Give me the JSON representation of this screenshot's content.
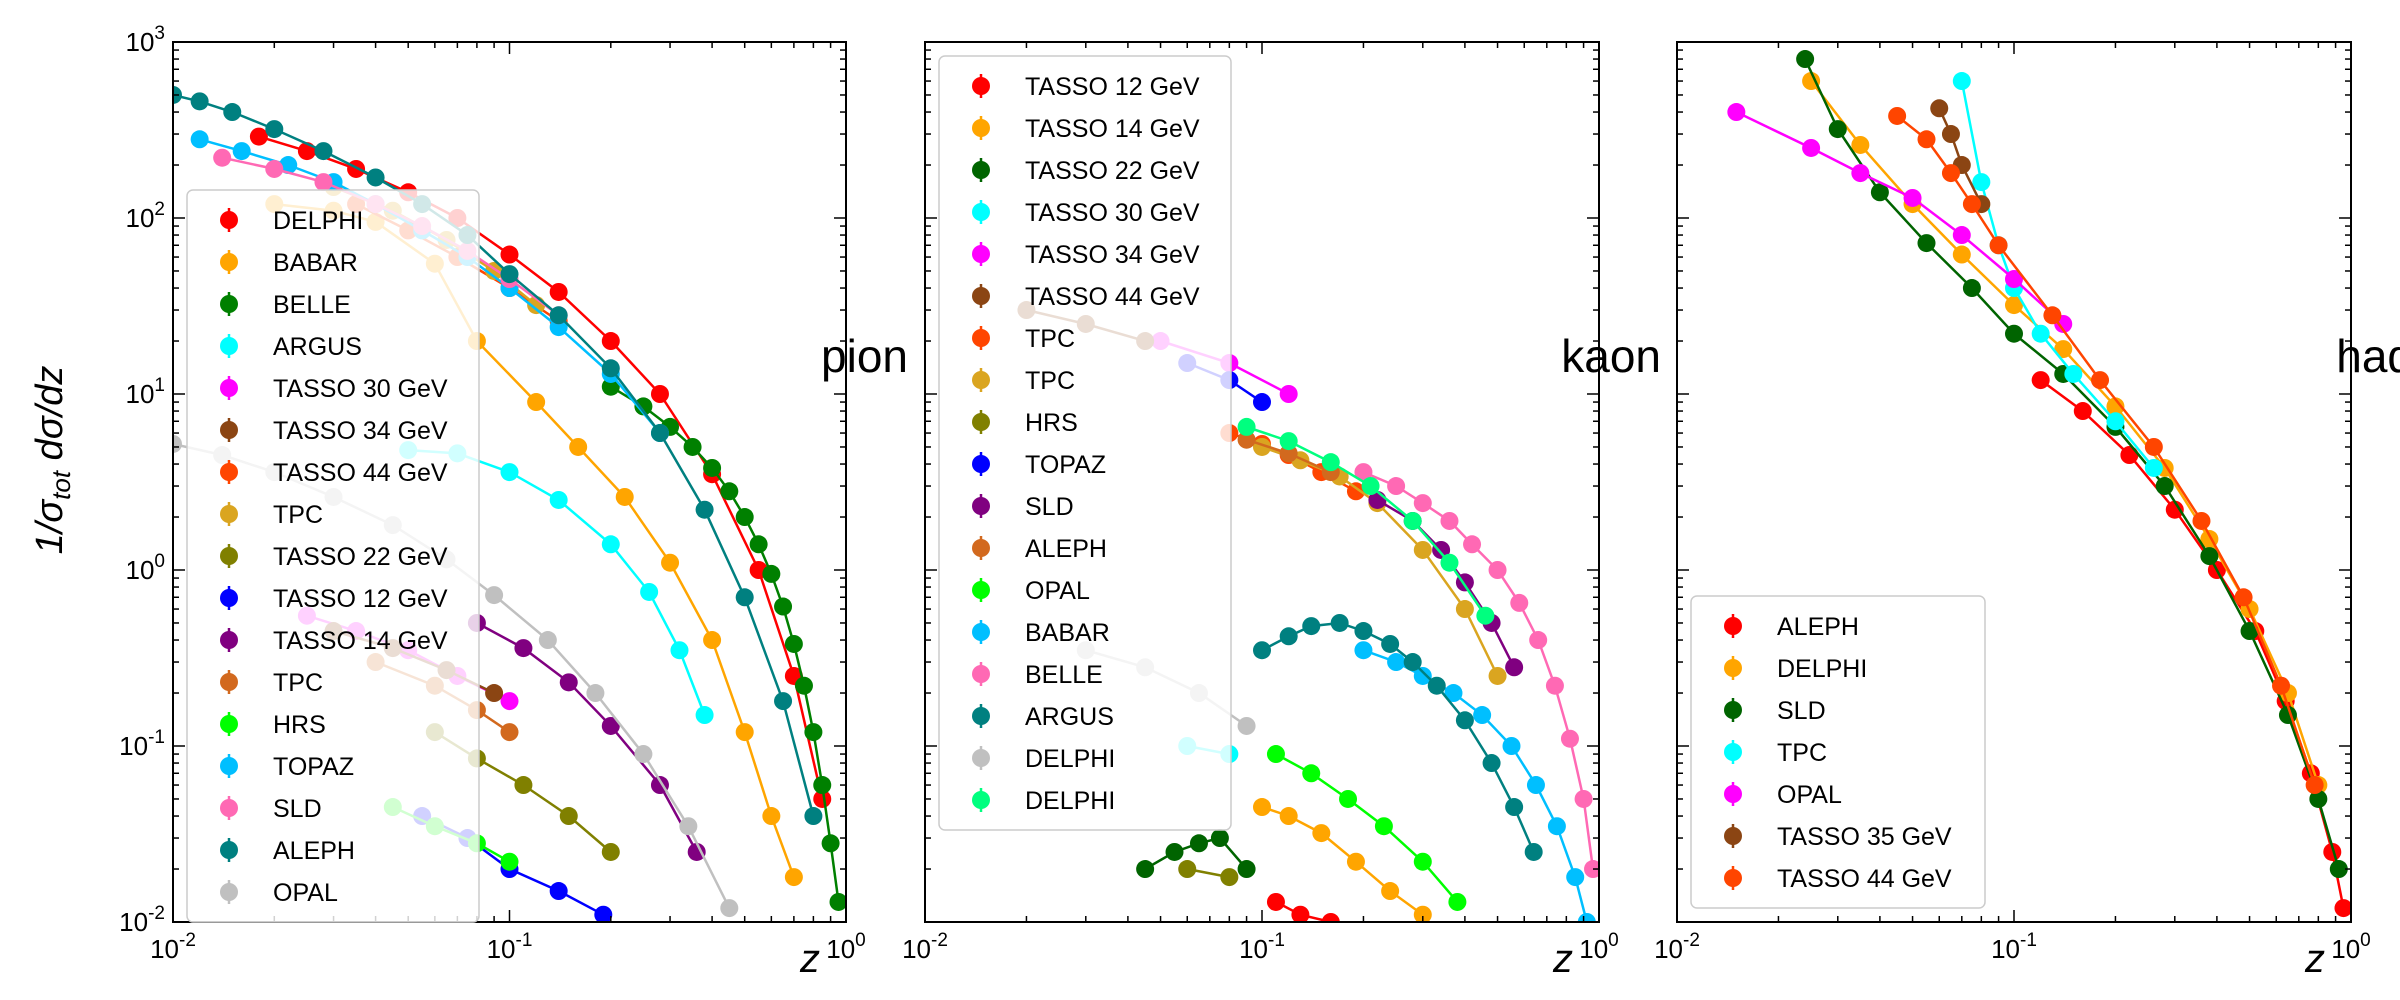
{
  "chart_data": [
    {
      "type": "scatter",
      "title": "pion",
      "xlabel": "z",
      "ylabel": "1/σ_tot dσ/dz",
      "xscale": "log",
      "yscale": "log",
      "xlim": [
        0.01,
        1
      ],
      "ylim": [
        0.01,
        1000
      ],
      "x_tick_labels": [
        "10^{-2}",
        "10^{-1}",
        "10^{0}"
      ],
      "y_tick_labels": [
        "10^{-2}",
        "10^{-1}",
        "10^{0}",
        "10^{1}",
        "10^{2}",
        "10^{3}"
      ],
      "legend_position": "left",
      "series": [
        {
          "name": "DELPHI",
          "color": "#ff0000",
          "x": [
            0.018,
            0.025,
            0.035,
            0.05,
            0.07,
            0.1,
            0.14,
            0.2,
            0.28,
            0.4,
            0.55,
            0.7,
            0.85
          ],
          "y": [
            290,
            240,
            190,
            140,
            100,
            62,
            38,
            20,
            10,
            3.5,
            1.0,
            0.25,
            0.05
          ]
        },
        {
          "name": "BABAR",
          "color": "#ffa500",
          "x": [
            0.02,
            0.03,
            0.04,
            0.06,
            0.08,
            0.12,
            0.16,
            0.22,
            0.3,
            0.4,
            0.5,
            0.6,
            0.7
          ],
          "y": [
            120,
            110,
            95,
            55,
            20,
            9,
            5,
            2.6,
            1.1,
            0.4,
            0.12,
            0.04,
            0.018
          ]
        },
        {
          "name": "BELLE",
          "color": "#008000",
          "x": [
            0.2,
            0.25,
            0.3,
            0.35,
            0.4,
            0.45,
            0.5,
            0.55,
            0.6,
            0.65,
            0.7,
            0.75,
            0.8,
            0.85,
            0.9,
            0.95
          ],
          "y": [
            11,
            8.5,
            6.5,
            5.0,
            3.8,
            2.8,
            2.0,
            1.4,
            0.95,
            0.62,
            0.38,
            0.22,
            0.12,
            0.06,
            0.028,
            0.013
          ]
        },
        {
          "name": "ARGUS",
          "color": "#00ffff",
          "x": [
            0.05,
            0.07,
            0.1,
            0.14,
            0.2,
            0.26,
            0.32,
            0.38
          ],
          "y": [
            4.8,
            4.6,
            3.6,
            2.5,
            1.4,
            0.75,
            0.35,
            0.15
          ]
        },
        {
          "name": "TASSO 30 GeV",
          "color": "#ff00ff",
          "x": [
            0.025,
            0.035,
            0.05,
            0.07,
            0.1
          ],
          "y": [
            0.55,
            0.45,
            0.35,
            0.25,
            0.18
          ]
        },
        {
          "name": "TASSO 34 GeV",
          "color": "#8b4513",
          "x": [
            0.03,
            0.045,
            0.065,
            0.09
          ],
          "y": [
            0.45,
            0.36,
            0.27,
            0.2
          ]
        },
        {
          "name": "TASSO 44 GeV",
          "color": "#ff4500",
          "x": [
            0.035,
            0.05,
            0.07,
            0.1,
            0.14
          ],
          "y": [
            120,
            85,
            60,
            40,
            26
          ]
        },
        {
          "name": "TPC",
          "color": "#daa520",
          "x": [
            0.03,
            0.045,
            0.065,
            0.09,
            0.12
          ],
          "y": [
            150,
            110,
            75,
            50,
            32
          ]
        },
        {
          "name": "TASSO 22 GeV",
          "color": "#808000",
          "x": [
            0.06,
            0.08,
            0.11,
            0.15,
            0.2
          ],
          "y": [
            0.12,
            0.085,
            0.06,
            0.04,
            0.025
          ]
        },
        {
          "name": "TASSO 12 GeV",
          "color": "#0000ff",
          "x": [
            0.055,
            0.075,
            0.1,
            0.14,
            0.19
          ],
          "y": [
            0.04,
            0.03,
            0.02,
            0.015,
            0.011
          ]
        },
        {
          "name": "TASSO 14 GeV",
          "color": "#800080",
          "x": [
            0.08,
            0.11,
            0.15,
            0.2,
            0.28,
            0.36
          ],
          "y": [
            0.5,
            0.36,
            0.23,
            0.13,
            0.06,
            0.025
          ]
        },
        {
          "name": "TPC",
          "color": "#d2691e",
          "x": [
            0.04,
            0.06,
            0.08,
            0.1
          ],
          "y": [
            0.3,
            0.22,
            0.16,
            0.12
          ]
        },
        {
          "name": "HRS",
          "color": "#00ff00",
          "x": [
            0.045,
            0.06,
            0.08,
            0.1
          ],
          "y": [
            0.045,
            0.035,
            0.028,
            0.022
          ]
        },
        {
          "name": "TOPAZ",
          "color": "#00bfff",
          "x": [
            0.012,
            0.016,
            0.022,
            0.03,
            0.04,
            0.055,
            0.075,
            0.1,
            0.14,
            0.2,
            0.28
          ],
          "y": [
            280,
            240,
            200,
            160,
            120,
            85,
            60,
            40,
            24,
            13,
            6
          ]
        },
        {
          "name": "SLD",
          "color": "#ff69b4",
          "x": [
            0.014,
            0.02,
            0.028,
            0.04,
            0.055,
            0.075,
            0.1,
            0.14
          ],
          "y": [
            220,
            190,
            160,
            120,
            90,
            65,
            45,
            28
          ]
        },
        {
          "name": "ALEPH",
          "color": "#008080",
          "x": [
            0.01,
            0.012,
            0.015,
            0.02,
            0.028,
            0.04,
            0.055,
            0.075,
            0.1,
            0.14,
            0.2,
            0.28,
            0.38,
            0.5,
            0.65,
            0.8
          ],
          "y": [
            500,
            460,
            400,
            320,
            240,
            170,
            120,
            80,
            48,
            28,
            14,
            6,
            2.2,
            0.7,
            0.18,
            0.04
          ]
        },
        {
          "name": "OPAL",
          "color": "#c0c0c0",
          "x": [
            0.01,
            0.014,
            0.02,
            0.03,
            0.045,
            0.065,
            0.09,
            0.13,
            0.18,
            0.25,
            0.34,
            0.45
          ],
          "y": [
            5.2,
            4.5,
            3.6,
            2.6,
            1.8,
            1.15,
            0.72,
            0.4,
            0.2,
            0.09,
            0.035,
            0.012
          ]
        }
      ]
    },
    {
      "type": "scatter",
      "title": "kaon",
      "xlabel": "z",
      "xscale": "log",
      "yscale": "log",
      "xlim": [
        0.01,
        1
      ],
      "ylim": [
        0.01,
        1000
      ],
      "x_tick_labels": [
        "10^{-2}",
        "10^{-1}",
        "10^{0}"
      ],
      "legend_position": "upper left",
      "series": [
        {
          "name": "TASSO 12 GeV",
          "color": "#ff0000",
          "x": [
            0.11,
            0.13,
            0.16
          ],
          "y": [
            0.013,
            0.011,
            0.01
          ]
        },
        {
          "name": "TASSO 14 GeV",
          "color": "#ffa500",
          "x": [
            0.1,
            0.12,
            0.15,
            0.19,
            0.24,
            0.3
          ],
          "y": [
            0.045,
            0.04,
            0.032,
            0.022,
            0.015,
            0.011
          ]
        },
        {
          "name": "TASSO 22 GeV",
          "color": "#006400",
          "x": [
            0.045,
            0.055,
            0.065,
            0.075,
            0.09
          ],
          "y": [
            0.02,
            0.025,
            0.028,
            0.03,
            0.02
          ]
        },
        {
          "name": "TASSO 30 GeV",
          "color": "#00ffff",
          "x": [
            0.06,
            0.08
          ],
          "y": [
            0.1,
            0.09
          ]
        },
        {
          "name": "TASSO 34 GeV",
          "color": "#ff00ff",
          "x": [
            0.05,
            0.08,
            0.12
          ],
          "y": [
            20,
            15,
            10
          ]
        },
        {
          "name": "TASSO 44 GeV",
          "color": "#8b4513",
          "x": [
            0.02,
            0.03,
            0.045
          ],
          "y": [
            30,
            25,
            20
          ]
        },
        {
          "name": "TPC",
          "color": "#ff4500",
          "x": [
            0.08,
            0.1,
            0.12,
            0.15,
            0.19
          ],
          "y": [
            6,
            5.2,
            4.5,
            3.6,
            2.8
          ]
        },
        {
          "name": "TPC",
          "color": "#daa520",
          "x": [
            0.1,
            0.13,
            0.17,
            0.22,
            0.3,
            0.4,
            0.5
          ],
          "y": [
            5,
            4.2,
            3.4,
            2.4,
            1.3,
            0.6,
            0.25
          ]
        },
        {
          "name": "HRS",
          "color": "#808000",
          "x": [
            0.06,
            0.08
          ],
          "y": [
            0.02,
            0.018
          ]
        },
        {
          "name": "TOPAZ",
          "color": "#0000ff",
          "x": [
            0.06,
            0.08,
            0.1
          ],
          "y": [
            15,
            12,
            9
          ]
        },
        {
          "name": "SLD",
          "color": "#800080",
          "x": [
            0.22,
            0.28,
            0.34,
            0.4,
            0.48,
            0.56
          ],
          "y": [
            2.5,
            1.9,
            1.3,
            0.85,
            0.5,
            0.28
          ]
        },
        {
          "name": "ALEPH",
          "color": "#d2691e",
          "x": [
            0.09,
            0.12,
            0.16
          ],
          "y": [
            5.5,
            4.6,
            3.6
          ]
        },
        {
          "name": "OPAL",
          "color": "#00ff00",
          "x": [
            0.11,
            0.14,
            0.18,
            0.23,
            0.3,
            0.38
          ],
          "y": [
            0.09,
            0.07,
            0.05,
            0.035,
            0.022,
            0.013
          ]
        },
        {
          "name": "BABAR",
          "color": "#00bfff",
          "x": [
            0.2,
            0.25,
            0.3,
            0.37,
            0.45,
            0.55,
            0.65,
            0.75,
            0.85,
            0.92
          ],
          "y": [
            0.35,
            0.3,
            0.25,
            0.2,
            0.15,
            0.1,
            0.06,
            0.035,
            0.018,
            0.01
          ]
        },
        {
          "name": "BELLE",
          "color": "#ff69b4",
          "x": [
            0.2,
            0.25,
            0.3,
            0.36,
            0.42,
            0.5,
            0.58,
            0.66,
            0.74,
            0.82,
            0.9,
            0.96
          ],
          "y": [
            3.6,
            3.0,
            2.4,
            1.9,
            1.4,
            1.0,
            0.65,
            0.4,
            0.22,
            0.11,
            0.05,
            0.02
          ]
        },
        {
          "name": "ARGUS",
          "color": "#008080",
          "x": [
            0.1,
            0.12,
            0.14,
            0.17,
            0.2,
            0.24,
            0.28,
            0.33,
            0.4,
            0.48,
            0.56,
            0.64
          ],
          "y": [
            0.35,
            0.42,
            0.48,
            0.5,
            0.45,
            0.38,
            0.3,
            0.22,
            0.14,
            0.08,
            0.045,
            0.025
          ]
        },
        {
          "name": "DELPHI",
          "color": "#c0c0c0",
          "x": [
            0.03,
            0.045,
            0.065,
            0.09
          ],
          "y": [
            0.35,
            0.28,
            0.2,
            0.13
          ]
        },
        {
          "name": "DELPHI",
          "color": "#00ff7f",
          "x": [
            0.09,
            0.12,
            0.16,
            0.21,
            0.28,
            0.36,
            0.46
          ],
          "y": [
            6.5,
            5.4,
            4.1,
            3.0,
            1.9,
            1.1,
            0.55
          ]
        }
      ]
    },
    {
      "type": "scatter",
      "title": "had",
      "xlabel": "z",
      "xscale": "log",
      "yscale": "log",
      "xlim": [
        0.01,
        1
      ],
      "ylim": [
        0.01,
        1000
      ],
      "x_tick_labels": [
        "10^{-2}",
        "10^{-1}",
        "10^{0}"
      ],
      "legend_position": "lower left",
      "series": [
        {
          "name": "ALEPH",
          "color": "#ff0000",
          "x": [
            0.12,
            0.16,
            0.22,
            0.3,
            0.4,
            0.52,
            0.64,
            0.76,
            0.88,
            0.95
          ],
          "y": [
            12,
            8,
            4.5,
            2.2,
            1.0,
            0.45,
            0.18,
            0.07,
            0.025,
            0.012
          ]
        },
        {
          "name": "DELPHI",
          "color": "#ffa500",
          "x": [
            0.025,
            0.035,
            0.05,
            0.07,
            0.1,
            0.14,
            0.2,
            0.28,
            0.38,
            0.5,
            0.65,
            0.8
          ],
          "y": [
            600,
            260,
            120,
            62,
            32,
            18,
            8.5,
            3.8,
            1.5,
            0.6,
            0.2,
            0.06
          ]
        },
        {
          "name": "SLD",
          "color": "#006400",
          "x": [
            0.024,
            0.03,
            0.04,
            0.055,
            0.075,
            0.1,
            0.14,
            0.2,
            0.28,
            0.38,
            0.5,
            0.65,
            0.8,
            0.92
          ],
          "y": [
            800,
            320,
            140,
            72,
            40,
            22,
            13,
            6.5,
            3.0,
            1.2,
            0.45,
            0.15,
            0.05,
            0.02
          ]
        },
        {
          "name": "TPC",
          "color": "#00ffff",
          "x": [
            0.07,
            0.08,
            0.09,
            0.1,
            0.12,
            0.15,
            0.2,
            0.26
          ],
          "y": [
            600,
            160,
            70,
            40,
            22,
            13,
            7,
            3.8
          ]
        },
        {
          "name": "OPAL",
          "color": "#ff00ff",
          "x": [
            0.015,
            0.025,
            0.035,
            0.05,
            0.07,
            0.1,
            0.14
          ],
          "y": [
            400,
            250,
            180,
            130,
            80,
            45,
            25
          ]
        },
        {
          "name": "TASSO 35 GeV",
          "color": "#8b4513",
          "x": [
            0.06,
            0.065,
            0.07,
            0.08
          ],
          "y": [
            420,
            300,
            200,
            120
          ]
        },
        {
          "name": "TASSO 44 GeV",
          "color": "#ff4500",
          "x": [
            0.045,
            0.055,
            0.065,
            0.075,
            0.09,
            0.13,
            0.18,
            0.26,
            0.36,
            0.48,
            0.62,
            0.78
          ],
          "y": [
            380,
            280,
            180,
            120,
            70,
            28,
            12,
            5,
            1.9,
            0.7,
            0.22,
            0.06
          ]
        }
      ]
    }
  ]
}
